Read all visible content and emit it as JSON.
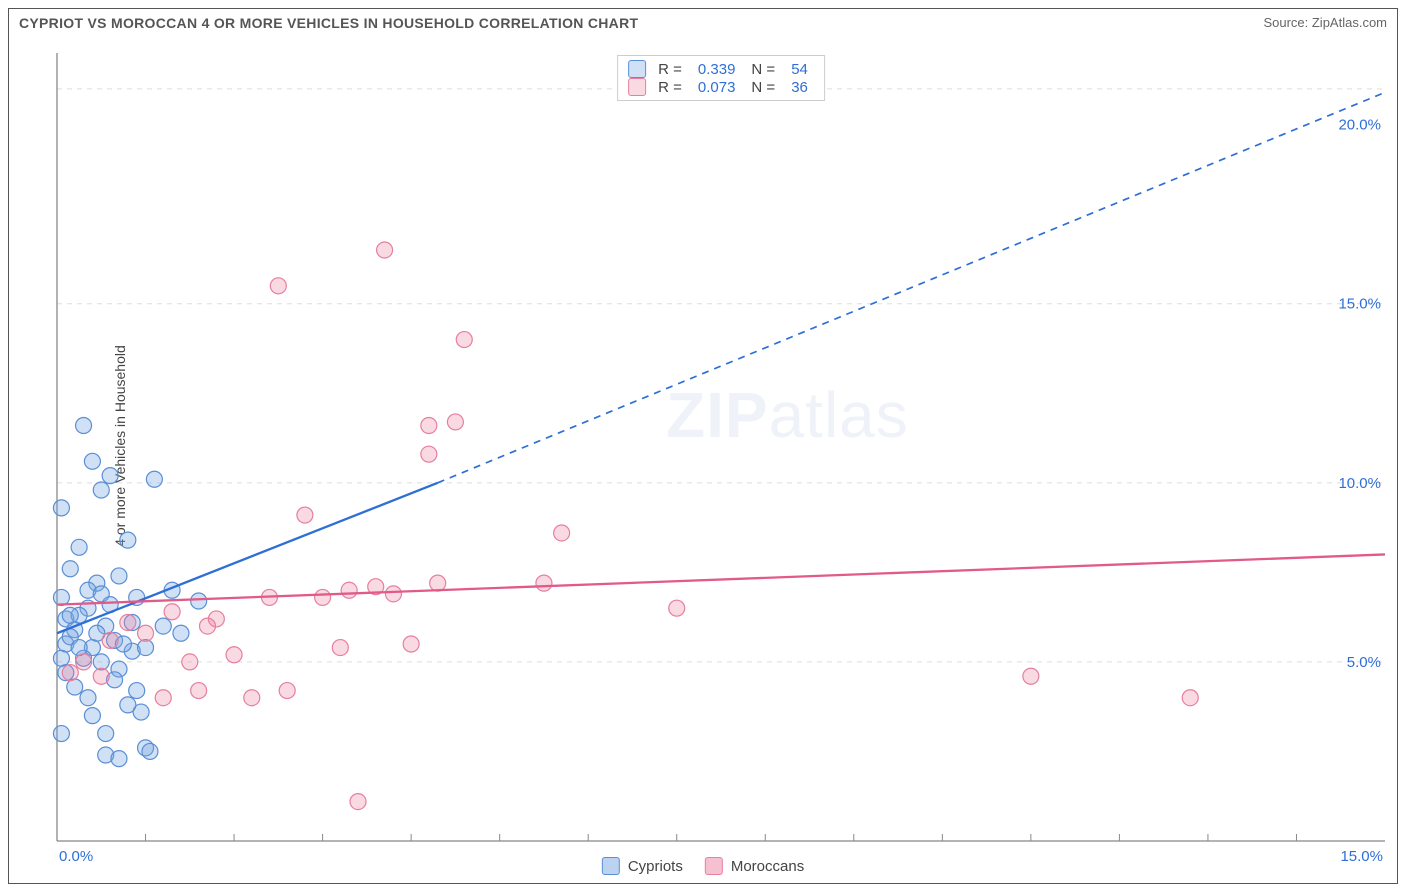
{
  "title": "CYPRIOT VS MOROCCAN 4 OR MORE VEHICLES IN HOUSEHOLD CORRELATION CHART",
  "source_label": "Source: ZipAtlas.com",
  "ylabel": "4 or more Vehicles in Household",
  "watermark_a": "ZIP",
  "watermark_b": "atlas",
  "chart": {
    "type": "scatter",
    "xlim": [
      0,
      15
    ],
    "ylim": [
      0,
      22
    ],
    "background_color": "#ffffff",
    "grid_color": "#dddddd",
    "grid_dash": "5,5",
    "axis_color": "#888888",
    "x_ticks_major": [],
    "x_ticks_minor": [
      1,
      2,
      3,
      4,
      5,
      6,
      7,
      8,
      9,
      10,
      11,
      12,
      13,
      14
    ],
    "x_tick_labels": [
      {
        "x": 0,
        "label": "0.0%"
      },
      {
        "x": 15,
        "label": "15.0%",
        "align": "end"
      }
    ],
    "y_gridlines": [
      5,
      10,
      15,
      21
    ],
    "y_tick_labels": [
      {
        "y": 5,
        "label": "5.0%"
      },
      {
        "y": 10,
        "label": "10.0%"
      },
      {
        "y": 15,
        "label": "15.0%"
      },
      {
        "y": 20,
        "label": "20.0%"
      }
    ],
    "tick_label_color": "#2e6fd6",
    "tick_label_fontsize": 15,
    "point_radius": 8,
    "point_stroke_width": 1.2,
    "series": [
      {
        "name": "Cypriots",
        "fill": "rgba(120,165,225,0.35)",
        "stroke": "#5a8fd6",
        "R": "0.339",
        "N": "54",
        "trend": {
          "from": [
            0,
            5.8
          ],
          "to_solid": [
            4.3,
            10.0
          ],
          "to_dashed": [
            15,
            20.9
          ],
          "color": "#2e6fd6",
          "width": 2.3,
          "dash": "7,6"
        },
        "points": [
          [
            0.05,
            9.3
          ],
          [
            0.1,
            6.2
          ],
          [
            0.1,
            5.5
          ],
          [
            0.15,
            7.6
          ],
          [
            0.2,
            5.9
          ],
          [
            0.25,
            8.2
          ],
          [
            0.3,
            11.6
          ],
          [
            0.35,
            6.5
          ],
          [
            0.4,
            10.6
          ],
          [
            0.4,
            5.4
          ],
          [
            0.45,
            7.2
          ],
          [
            0.5,
            5.0
          ],
          [
            0.5,
            9.8
          ],
          [
            0.55,
            6.0
          ],
          [
            0.6,
            10.2
          ],
          [
            0.65,
            5.6
          ],
          [
            0.7,
            4.8
          ],
          [
            0.7,
            7.4
          ],
          [
            0.8,
            8.4
          ],
          [
            0.85,
            5.3
          ],
          [
            0.9,
            6.8
          ],
          [
            0.95,
            3.6
          ],
          [
            1.0,
            2.6
          ],
          [
            0.05,
            3.0
          ],
          [
            0.1,
            4.7
          ],
          [
            0.15,
            5.7
          ],
          [
            0.2,
            4.3
          ],
          [
            0.25,
            6.3
          ],
          [
            0.3,
            5.1
          ],
          [
            0.35,
            4.0
          ],
          [
            0.4,
            3.5
          ],
          [
            0.45,
            5.8
          ],
          [
            0.05,
            5.1
          ],
          [
            0.55,
            2.4
          ],
          [
            0.6,
            6.6
          ],
          [
            0.65,
            4.5
          ],
          [
            0.7,
            2.3
          ],
          [
            0.75,
            5.5
          ],
          [
            0.8,
            3.8
          ],
          [
            0.85,
            6.1
          ],
          [
            0.9,
            4.2
          ],
          [
            1.0,
            5.4
          ],
          [
            1.1,
            10.1
          ],
          [
            1.2,
            6.0
          ],
          [
            1.3,
            7.0
          ],
          [
            1.4,
            5.8
          ],
          [
            1.6,
            6.7
          ],
          [
            0.55,
            3.0
          ],
          [
            0.05,
            6.8
          ],
          [
            0.15,
            6.3
          ],
          [
            0.25,
            5.4
          ],
          [
            0.35,
            7.0
          ],
          [
            0.5,
            6.9
          ],
          [
            1.05,
            2.5
          ]
        ]
      },
      {
        "name": "Moroccans",
        "fill": "rgba(235,130,160,0.30)",
        "stroke": "#e67fa0",
        "R": "0.073",
        "N": "36",
        "trend": {
          "from": [
            0,
            6.6
          ],
          "to_solid": [
            15,
            8.0
          ],
          "color": "#e15a8a",
          "width": 2.3
        },
        "points": [
          [
            0.3,
            5.0
          ],
          [
            0.5,
            4.6
          ],
          [
            0.8,
            6.1
          ],
          [
            1.0,
            5.8
          ],
          [
            1.2,
            4.0
          ],
          [
            1.3,
            6.4
          ],
          [
            1.5,
            5.0
          ],
          [
            1.6,
            4.2
          ],
          [
            1.8,
            6.2
          ],
          [
            2.0,
            5.2
          ],
          [
            2.2,
            4.0
          ],
          [
            2.4,
            6.8
          ],
          [
            2.5,
            15.5
          ],
          [
            2.6,
            4.2
          ],
          [
            2.8,
            9.1
          ],
          [
            3.0,
            6.8
          ],
          [
            3.2,
            5.4
          ],
          [
            3.3,
            7.0
          ],
          [
            3.4,
            1.1
          ],
          [
            3.6,
            7.1
          ],
          [
            3.7,
            16.5
          ],
          [
            3.8,
            6.9
          ],
          [
            4.0,
            5.5
          ],
          [
            4.2,
            11.6
          ],
          [
            4.2,
            10.8
          ],
          [
            4.3,
            7.2
          ],
          [
            4.5,
            11.7
          ],
          [
            4.6,
            14.0
          ],
          [
            5.5,
            7.2
          ],
          [
            5.7,
            8.6
          ],
          [
            7.0,
            6.5
          ],
          [
            0.15,
            4.7
          ],
          [
            0.6,
            5.6
          ],
          [
            1.7,
            6.0
          ],
          [
            11.0,
            4.6
          ],
          [
            12.8,
            4.0
          ]
        ]
      }
    ]
  },
  "legend_bottom": [
    {
      "label": "Cypriots",
      "fill": "rgba(120,165,225,0.5)",
      "stroke": "#5a8fd6"
    },
    {
      "label": "Moroccans",
      "fill": "rgba(235,130,160,0.5)",
      "stroke": "#e67fa0"
    }
  ]
}
